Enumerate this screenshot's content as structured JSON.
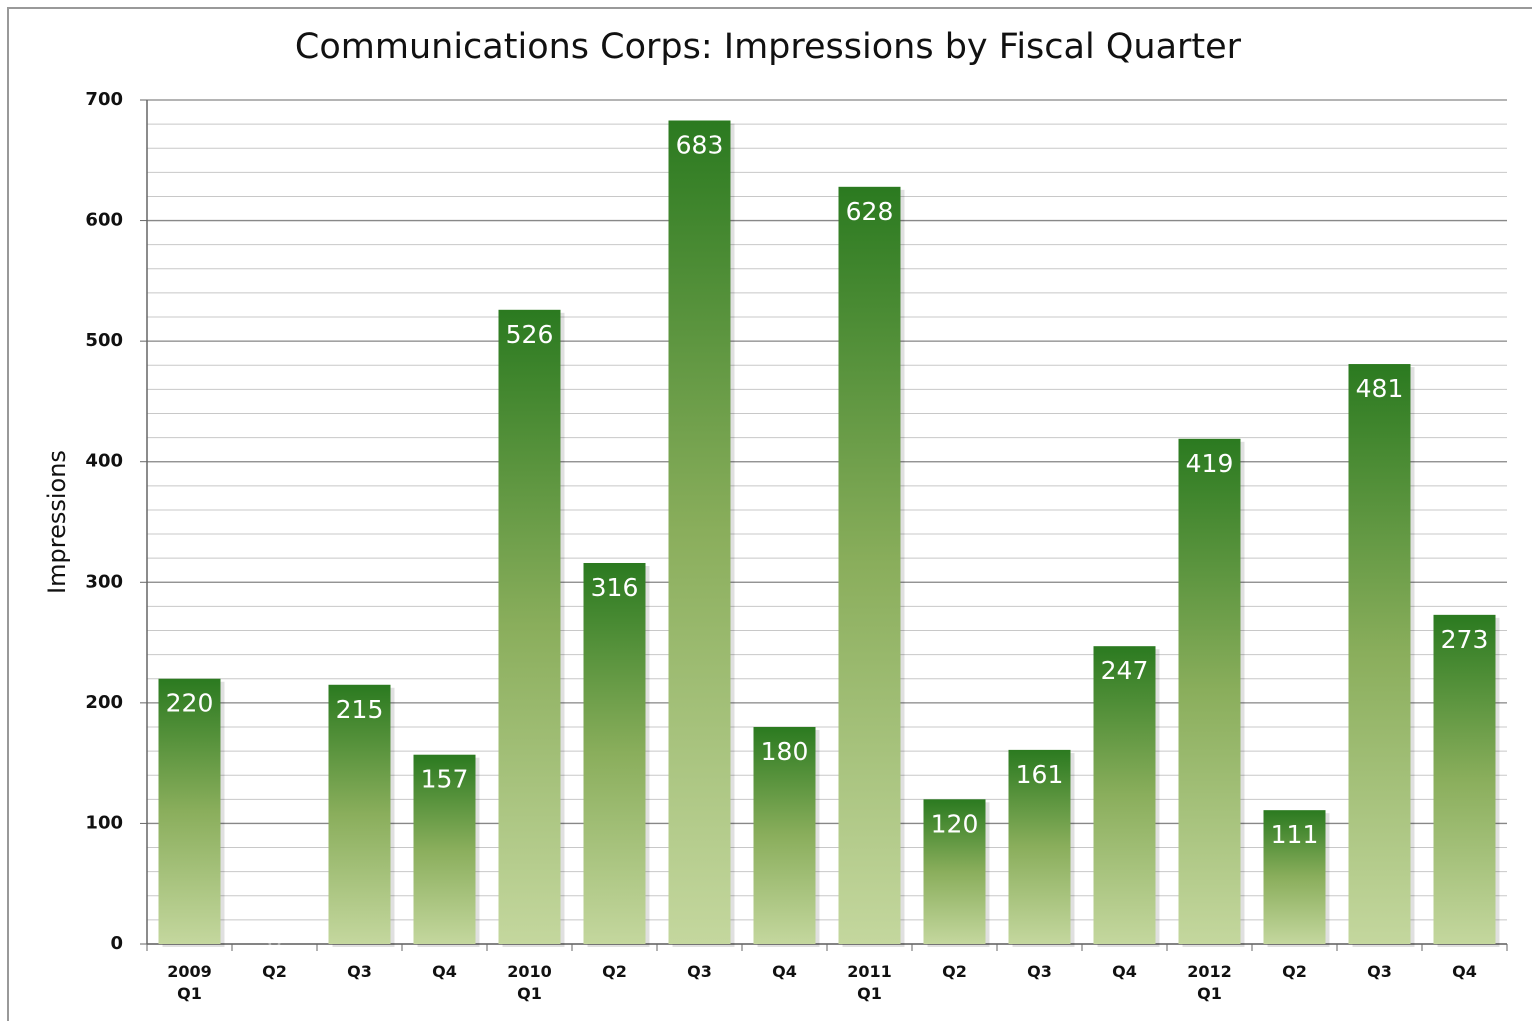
{
  "chart_data": {
    "type": "bar",
    "title": "Communications Corps: Impressions by Fiscal Quarter",
    "y_label": "Impressions",
    "categories": [
      "2009\nQ1",
      "Q2",
      "Q3",
      "Q4",
      "2010\nQ1",
      "Q2",
      "Q3",
      "Q4",
      "2011\nQ1",
      "Q2",
      "Q3",
      "Q4",
      "2012\nQ1",
      "Q2",
      "Q3",
      "Q4"
    ],
    "values": [
      220,
      0,
      215,
      157,
      526,
      316,
      683,
      180,
      628,
      120,
      161,
      247,
      419,
      111,
      481,
      273
    ],
    "color_top": "#2b7a20",
    "color_bottom": "#c4d79e",
    "ylim": [
      0,
      700
    ],
    "yticks": [
      0,
      100,
      200,
      300,
      400,
      500,
      600,
      700
    ],
    "grid": true,
    "minor_grid_step": 20
  }
}
